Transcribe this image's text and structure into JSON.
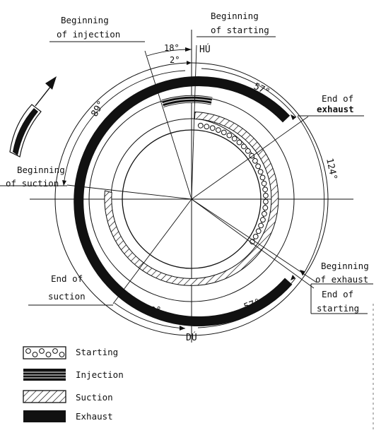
{
  "labels": {
    "beginning_of_injection": [
      "Beginning",
      "of injection"
    ],
    "beginning_of_starting": [
      "Beginning",
      "of starting"
    ],
    "end_of_exhaust": [
      "End of",
      "exhaust"
    ],
    "beginning_of_suction": [
      "Beginning",
      "of suction"
    ],
    "end_of_suction": [
      "End of",
      "suction"
    ],
    "beginning_of_exhaust": [
      "Beginning",
      "of exhaust"
    ],
    "end_of_starting": [
      "End of",
      "starting"
    ]
  },
  "dead_centers": {
    "top": "HÚ",
    "bottom": "DÚ"
  },
  "angles": {
    "injection_lead": "18°",
    "starting_lead": "2°",
    "exhaust_end": "57°",
    "starting_duration": "124°",
    "suction_begin": "89°",
    "suction_end": "39°",
    "exhaust_begin": "57°"
  },
  "legend": [
    {
      "key": "starting",
      "label": "Starting",
      "pattern": "circles"
    },
    {
      "key": "injection",
      "label": "Injection",
      "pattern": "lines"
    },
    {
      "key": "suction",
      "label": "Suction",
      "pattern": "hatch"
    },
    {
      "key": "exhaust",
      "label": "Exhaust",
      "pattern": "solid"
    }
  ],
  "colors": {
    "ink": "#111111",
    "paper": "#ffffff"
  },
  "rotation_arrow_icon": "curved-arrow-clockwise"
}
